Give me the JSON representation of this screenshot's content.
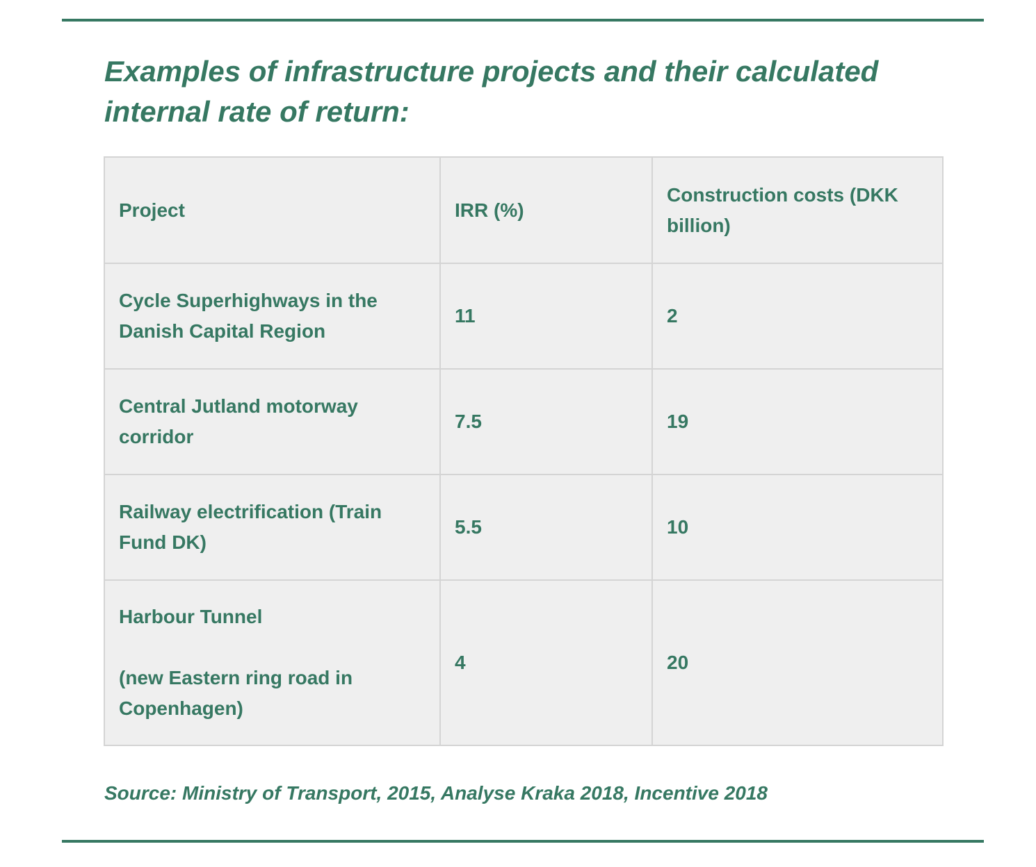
{
  "title": "Examples of infrastructure projects and their calculated internal rate of return:",
  "table": {
    "headers": {
      "project": "Project",
      "irr": "IRR (%)",
      "costs": "Construction costs (DKK billion)"
    },
    "rows": [
      {
        "project": "Cycle Superhighways in the Danish Capital Region",
        "irr": "11",
        "costs": "2"
      },
      {
        "project": "Central Jutland motorway corridor",
        "irr": "7.5",
        "costs": "19"
      },
      {
        "project": "Railway electrification (Train Fund DK)",
        "irr": "5.5",
        "costs": "10"
      },
      {
        "project_line1": "Harbour Tunnel",
        "project_line2": "(new Eastern ring road in Copenhagen)",
        "irr": "4",
        "costs": "20"
      }
    ]
  },
  "source": "Source: Ministry of Transport, 2015, Analyse Kraka 2018, Incentive 2018",
  "colors": {
    "text": "#367862",
    "rule": "#367862",
    "table_bg": "#efefef",
    "table_border": "#d4d4d4"
  }
}
